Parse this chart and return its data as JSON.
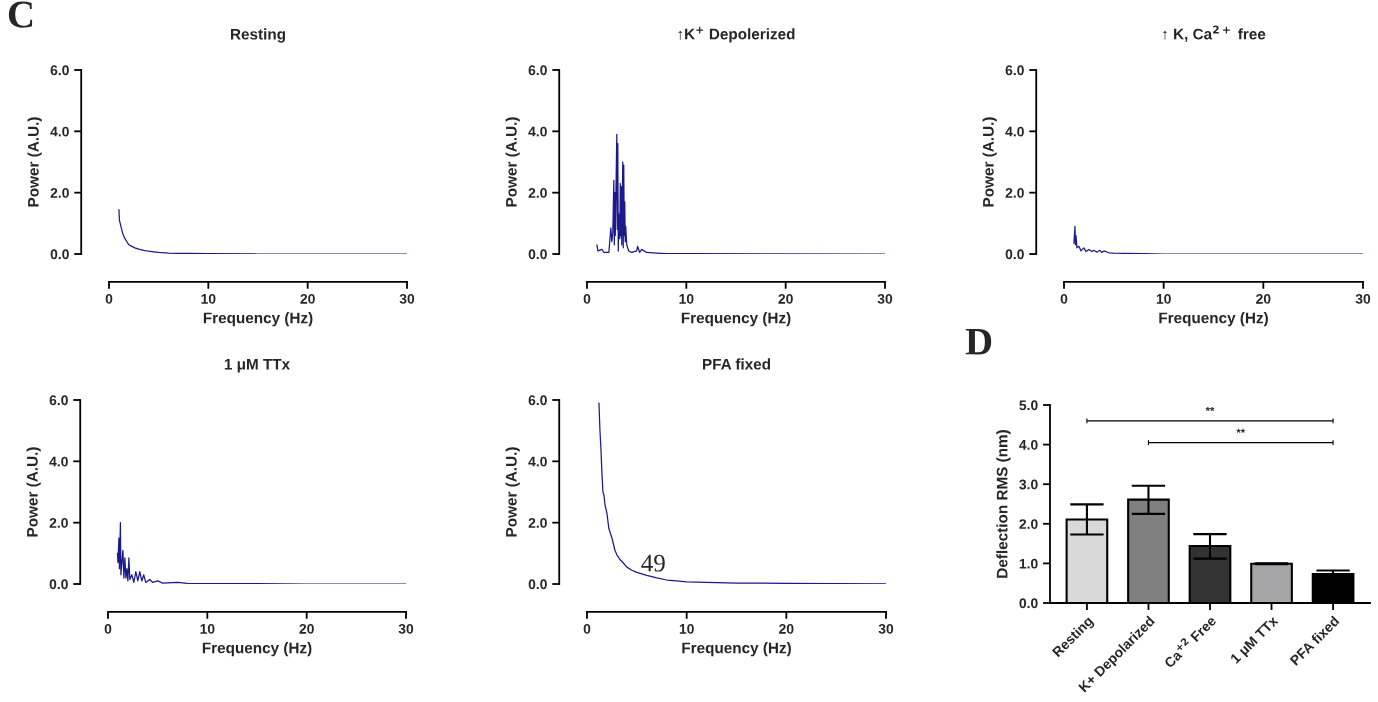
{
  "chart_data": [
    {
      "type": "line",
      "title": "Resting",
      "xlabel": "Frequency (Hz)",
      "ylabel": "Power (A.U.)",
      "annotations": [
        "C"
      ],
      "xlim": [
        0,
        30
      ],
      "xticks": [
        0,
        10,
        20,
        30
      ],
      "ylim": [
        0,
        6
      ],
      "yticks": [
        {
          "value": 0,
          "label": "0.0"
        },
        {
          "value": 2,
          "label": "2.0"
        },
        {
          "value": 4,
          "label": "4.0"
        },
        {
          "value": 6,
          "label": "6.0"
        }
      ],
      "grid": false,
      "series": [
        {
          "color": "#1a1a8c",
          "x": [
            1.0,
            1.05,
            1.2,
            1.4,
            1.6,
            1.8,
            2.0,
            2.3,
            2.6,
            3.0,
            3.5,
            4.0,
            4.5,
            5.0,
            6.0,
            7.0,
            8.0,
            10.0,
            15.0,
            20.0,
            30.0
          ],
          "values": [
            1.45,
            1.1,
            0.9,
            0.65,
            0.5,
            0.4,
            0.3,
            0.25,
            0.2,
            0.16,
            0.12,
            0.09,
            0.07,
            0.05,
            0.03,
            0.02,
            0.02,
            0.01,
            0.0,
            0.0,
            0.0
          ]
        }
      ]
    },
    {
      "type": "line",
      "title": "↑K$^{+}$ Depolerized",
      "xlabel": "Frequency (Hz)",
      "ylabel": "Power (A.U.)",
      "xlim": [
        0,
        30
      ],
      "xticks": [
        0,
        10,
        20,
        30
      ],
      "ylim": [
        0,
        6
      ],
      "yticks": [
        {
          "value": 0,
          "label": "0.0"
        },
        {
          "value": 2,
          "label": "2.0"
        },
        {
          "value": 4,
          "label": "4.0"
        },
        {
          "value": 6,
          "label": "6.0"
        }
      ],
      "grid": false,
      "series": [
        {
          "color": "#1a1a8c",
          "x": [
            1.0,
            1.1,
            1.5,
            1.7,
            2.2,
            2.4,
            2.5,
            2.6,
            2.7,
            2.75,
            2.8,
            2.85,
            2.95,
            3.0,
            3.05,
            3.1,
            3.15,
            3.2,
            3.3,
            3.35,
            3.4,
            3.45,
            3.5,
            3.55,
            3.6,
            3.65,
            3.7,
            3.75,
            3.8,
            3.85,
            3.9,
            4.0,
            4.2,
            4.5,
            5.0,
            5.1,
            5.3,
            5.5,
            6.0,
            7.0,
            8.0,
            10.0,
            30.0
          ],
          "values": [
            0.3,
            0.1,
            0.15,
            0.05,
            0.05,
            0.85,
            0.4,
            0.7,
            2.4,
            0.3,
            2.0,
            0.6,
            2.8,
            3.9,
            0.8,
            3.6,
            0.1,
            1.3,
            0.5,
            2.3,
            0.6,
            2.2,
            0.3,
            1.5,
            3.0,
            0.2,
            2.9,
            0.6,
            1.7,
            0.4,
            0.9,
            0.3,
            0.1,
            0.05,
            0.1,
            0.25,
            0.05,
            0.15,
            0.05,
            0.03,
            0.01,
            0.01,
            0.0
          ]
        }
      ]
    },
    {
      "type": "line",
      "title": "↑ K, Ca$^{2+}$ free",
      "xlabel": "Frequency (Hz)",
      "ylabel": "Power (A.U.)",
      "xlim": [
        0,
        30
      ],
      "xticks": [
        0,
        10,
        20,
        30
      ],
      "ylim": [
        0,
        6
      ],
      "yticks": [
        {
          "value": 0,
          "label": "0.0"
        },
        {
          "value": 2,
          "label": "2.0"
        },
        {
          "value": 4,
          "label": "4.0"
        },
        {
          "value": 6,
          "label": "6.0"
        }
      ],
      "grid": false,
      "series": [
        {
          "color": "#1a1a8c",
          "x": [
            1.0,
            1.1,
            1.15,
            1.2,
            1.3,
            1.5,
            1.7,
            2.0,
            2.2,
            2.5,
            2.8,
            3.0,
            3.3,
            3.6,
            3.8,
            4.0,
            4.5,
            5.0,
            6.0,
            8.0,
            10.0,
            30.0
          ],
          "values": [
            0.35,
            0.9,
            0.3,
            0.6,
            0.2,
            0.25,
            0.1,
            0.2,
            0.08,
            0.15,
            0.08,
            0.12,
            0.06,
            0.12,
            0.05,
            0.1,
            0.04,
            0.03,
            0.02,
            0.01,
            0.0,
            0.0
          ]
        }
      ]
    },
    {
      "type": "line",
      "title": "1 μM TTx",
      "xlabel": "Frequency (Hz)",
      "ylabel": "Power (A.U.)",
      "xlim": [
        0,
        30
      ],
      "xticks": [
        0,
        10,
        20,
        30
      ],
      "ylim": [
        0,
        6
      ],
      "yticks": [
        {
          "value": 0,
          "label": "0.0"
        },
        {
          "value": 2,
          "label": "2.0"
        },
        {
          "value": 4,
          "label": "4.0"
        },
        {
          "value": 6,
          "label": "6.0"
        }
      ],
      "grid": false,
      "series": [
        {
          "color": "#1a1a8c",
          "x": [
            0.95,
            1.0,
            1.1,
            1.15,
            1.25,
            1.3,
            1.5,
            1.6,
            1.7,
            1.8,
            1.9,
            2.0,
            2.1,
            2.2,
            2.4,
            2.6,
            2.8,
            3.0,
            3.2,
            3.4,
            3.6,
            3.8,
            4.2,
            4.5,
            5.0,
            5.5,
            7.0,
            8.0,
            10.0,
            15.0,
            20.0,
            30.0
          ],
          "values": [
            1.0,
            0.7,
            1.5,
            0.5,
            2.0,
            0.3,
            1.1,
            0.2,
            0.85,
            0.2,
            0.5,
            0.1,
            0.85,
            0.15,
            0.3,
            0.05,
            0.4,
            0.1,
            0.4,
            0.1,
            0.3,
            0.05,
            0.15,
            0.05,
            0.1,
            0.03,
            0.05,
            0.02,
            0.01,
            0.01,
            0.0,
            0.0
          ]
        }
      ]
    },
    {
      "type": "line",
      "title": "PFA fixed",
      "xlabel": "Frequency (Hz)",
      "ylabel": "Power (A.U.)",
      "annotations": [
        "49"
      ],
      "xlim": [
        0,
        30
      ],
      "xticks": [
        0,
        10,
        20,
        30
      ],
      "ylim": [
        0,
        6
      ],
      "yticks": [
        {
          "value": 0,
          "label": "0.0"
        },
        {
          "value": 2,
          "label": "2.0"
        },
        {
          "value": 4,
          "label": "4.0"
        },
        {
          "value": 6,
          "label": "6.0"
        }
      ],
      "grid": false,
      "series": [
        {
          "color": "#1a1a8c",
          "x": [
            1.2,
            1.3,
            1.4,
            1.5,
            1.6,
            1.7,
            1.8,
            2.0,
            2.2,
            2.5,
            2.8,
            3.0,
            3.3,
            3.6,
            4.0,
            4.5,
            5.0,
            6.0,
            7.0,
            8.0,
            9.0,
            10.0,
            12.0,
            15.0,
            20.0,
            25.0,
            30.0
          ],
          "values": [
            5.9,
            5.0,
            4.4,
            3.6,
            3.0,
            2.9,
            2.6,
            2.3,
            1.8,
            1.5,
            1.1,
            0.95,
            0.8,
            0.7,
            0.55,
            0.45,
            0.38,
            0.28,
            0.2,
            0.13,
            0.1,
            0.07,
            0.05,
            0.03,
            0.02,
            0.01,
            0.0
          ]
        }
      ]
    },
    {
      "type": "bar",
      "ylabel": "Deflection RMS (nm)",
      "annotations": [
        "D",
        "**",
        "**"
      ],
      "categories": [
        "Resting",
        "K+ Depolarized",
        "Ca$^{+2}$ Free",
        "1 μM TTx",
        "PFA fixed"
      ],
      "ylim": [
        0,
        5
      ],
      "yticks": [
        {
          "value": 0,
          "label": "0.0"
        },
        {
          "value": 1,
          "label": "1.0"
        },
        {
          "value": 2,
          "label": "2.0"
        },
        {
          "value": 3,
          "label": "3.0"
        },
        {
          "value": 4,
          "label": "4.0"
        },
        {
          "value": 5,
          "label": "5.0"
        }
      ],
      "grid": false,
      "values": [
        2.11,
        2.61,
        1.44,
        0.99,
        0.73
      ],
      "errors": [
        [
          1.73,
          2.49
        ],
        [
          2.25,
          2.96
        ],
        [
          1.12,
          1.74
        ],
        [
          0.98,
          1.0
        ],
        [
          0.73,
          0.82
        ]
      ],
      "colors": [
        "#d9d9d9",
        "#808080",
        "#333333",
        "#a6a6a8",
        "#000000"
      ]
    }
  ]
}
